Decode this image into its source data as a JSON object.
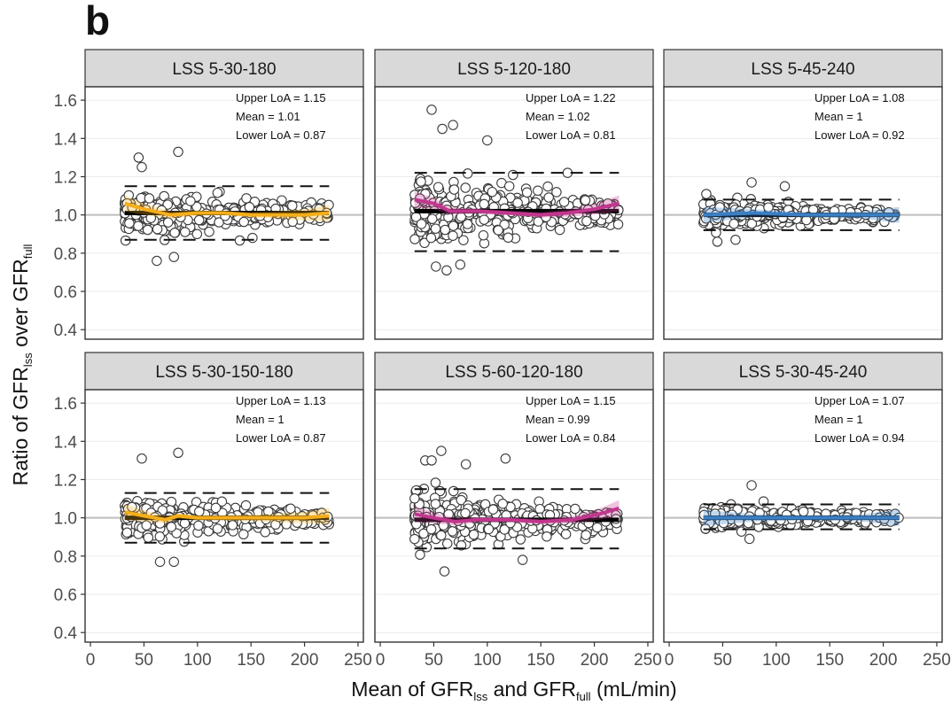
{
  "figure": {
    "panel_label": "b",
    "xlabel_parts": [
      "Mean of GFR",
      "lss",
      " and GFR",
      "full",
      " (mL/min)"
    ],
    "ylabel_parts": [
      "Ratio of GFR",
      "lss",
      " over GFR",
      "full"
    ]
  },
  "chart_data": [
    {
      "type": "scatter",
      "title": "LSS 5-30-180",
      "xlim": [
        -5,
        255
      ],
      "ylim": [
        0.35,
        1.67
      ],
      "xticks": [
        0,
        50,
        100,
        150,
        200,
        250
      ],
      "yticks": [
        0.4,
        0.6,
        0.8,
        1.0,
        1.2,
        1.4,
        1.6
      ],
      "smooth_color": "#F5AE1B",
      "annotations": {
        "upper_loa": "Upper LoA =  1.15",
        "mean": "Mean =  1.01",
        "lower_loa": "Lower LoA =  0.87"
      },
      "upper_loa": 1.15,
      "mean": 1.01,
      "lower_loa": 0.87,
      "x_range": [
        32,
        223
      ],
      "spread": 0.065,
      "n_points": 420,
      "outliers": [
        [
          45,
          1.3
        ],
        [
          82,
          1.33
        ],
        [
          62,
          0.76
        ],
        [
          78,
          0.78
        ],
        [
          48,
          1.25
        ]
      ],
      "smooth": [
        [
          32,
          1.06
        ],
        [
          50,
          1.03
        ],
        [
          75,
          1.0
        ],
        [
          100,
          1.01
        ],
        [
          125,
          1.01
        ],
        [
          150,
          1.0
        ],
        [
          175,
          1.0
        ],
        [
          200,
          1.0
        ],
        [
          223,
          1.01
        ]
      ]
    },
    {
      "type": "scatter",
      "title": "LSS 5-120-180",
      "xlim": [
        -5,
        255
      ],
      "ylim": [
        0.35,
        1.67
      ],
      "xticks": [
        0,
        50,
        100,
        150,
        200,
        250
      ],
      "yticks": [
        0.4,
        0.6,
        0.8,
        1.0,
        1.2,
        1.4,
        1.6
      ],
      "smooth_color": "#C2378E",
      "annotations": {
        "upper_loa": "Upper LoA =  1.22",
        "mean": "Mean =  1.02",
        "lower_loa": "Lower LoA =  0.81"
      },
      "upper_loa": 1.22,
      "mean": 1.02,
      "lower_loa": 0.81,
      "x_range": [
        32,
        223
      ],
      "spread": 0.105,
      "n_points": 420,
      "outliers": [
        [
          48,
          1.55
        ],
        [
          68,
          1.47
        ],
        [
          58,
          1.45
        ],
        [
          175,
          1.22
        ],
        [
          52,
          0.73
        ],
        [
          62,
          0.71
        ],
        [
          100,
          1.39
        ]
      ],
      "smooth": [
        [
          32,
          1.08
        ],
        [
          50,
          1.06
        ],
        [
          65,
          1.02
        ],
        [
          90,
          1.02
        ],
        [
          120,
          1.01
        ],
        [
          150,
          1.0
        ],
        [
          175,
          1.01
        ],
        [
          200,
          1.03
        ],
        [
          223,
          1.06
        ]
      ]
    },
    {
      "type": "scatter",
      "title": "LSS 5-45-240",
      "xlim": [
        -5,
        255
      ],
      "ylim": [
        0.35,
        1.67
      ],
      "xticks": [
        0,
        50,
        100,
        150,
        200,
        250
      ],
      "yticks": [
        0.4,
        0.6,
        0.8,
        1.0,
        1.2,
        1.4,
        1.6
      ],
      "smooth_color": "#3B7FC4",
      "annotations": {
        "upper_loa": "Upper LoA =  1.08",
        "mean": "Mean =  1",
        "lower_loa": "Lower LoA =  0.92"
      },
      "upper_loa": 1.08,
      "mean": 1.0,
      "lower_loa": 0.92,
      "x_range": [
        32,
        215
      ],
      "spread": 0.04,
      "n_points": 380,
      "outliers": [
        [
          77,
          1.17
        ],
        [
          108,
          1.15
        ],
        [
          45,
          0.86
        ],
        [
          62,
          0.87
        ]
      ],
      "smooth": [
        [
          32,
          1.0
        ],
        [
          80,
          1.01
        ],
        [
          130,
          1.0
        ],
        [
          180,
          1.0
        ],
        [
          215,
          1.0
        ]
      ]
    },
    {
      "type": "scatter",
      "title": "LSS 5-30-150-180",
      "xlim": [
        -5,
        255
      ],
      "ylim": [
        0.35,
        1.67
      ],
      "xticks": [
        0,
        50,
        100,
        150,
        200,
        250
      ],
      "yticks": [
        0.4,
        0.6,
        0.8,
        1.0,
        1.2,
        1.4,
        1.6
      ],
      "smooth_color": "#F5AE1B",
      "annotations": {
        "upper_loa": "Upper LoA =  1.13",
        "mean": "Mean =  1",
        "lower_loa": "Lower LoA =  0.87"
      },
      "upper_loa": 1.13,
      "mean": 1.0,
      "lower_loa": 0.87,
      "x_range": [
        32,
        223
      ],
      "spread": 0.06,
      "n_points": 420,
      "outliers": [
        [
          48,
          1.31
        ],
        [
          82,
          1.34
        ],
        [
          65,
          0.77
        ],
        [
          78,
          0.77
        ]
      ],
      "smooth": [
        [
          32,
          1.03
        ],
        [
          50,
          1.01
        ],
        [
          70,
          0.99
        ],
        [
          82,
          1.01
        ],
        [
          100,
          1.0
        ],
        [
          130,
          1.0
        ],
        [
          160,
          1.0
        ],
        [
          200,
          1.0
        ],
        [
          223,
          1.01
        ]
      ]
    },
    {
      "type": "scatter",
      "title": "LSS 5-60-120-180",
      "xlim": [
        -5,
        255
      ],
      "ylim": [
        0.35,
        1.67
      ],
      "xticks": [
        0,
        50,
        100,
        150,
        200,
        250
      ],
      "yticks": [
        0.4,
        0.6,
        0.8,
        1.0,
        1.2,
        1.4,
        1.6
      ],
      "smooth_color": "#C2378E",
      "annotations": {
        "upper_loa": "Upper LoA =  1.15",
        "mean": "Mean =  0.99",
        "lower_loa": "Lower LoA =  0.84"
      },
      "upper_loa": 1.15,
      "mean": 0.99,
      "lower_loa": 0.84,
      "x_range": [
        32,
        223
      ],
      "spread": 0.08,
      "n_points": 420,
      "outliers": [
        [
          42,
          1.3
        ],
        [
          48,
          1.3
        ],
        [
          57,
          1.35
        ],
        [
          80,
          1.28
        ],
        [
          117,
          1.31
        ],
        [
          60,
          0.72
        ],
        [
          133,
          0.78
        ]
      ],
      "smooth": [
        [
          32,
          1.02
        ],
        [
          50,
          1.0
        ],
        [
          70,
          0.98
        ],
        [
          90,
          0.99
        ],
        [
          120,
          0.99
        ],
        [
          150,
          0.98
        ],
        [
          180,
          0.99
        ],
        [
          205,
          1.02
        ],
        [
          223,
          1.05
        ]
      ]
    },
    {
      "type": "scatter",
      "title": "LSS 5-30-45-240",
      "xlim": [
        -5,
        255
      ],
      "ylim": [
        0.35,
        1.67
      ],
      "xticks": [
        0,
        50,
        100,
        150,
        200,
        250
      ],
      "yticks": [
        0.4,
        0.6,
        0.8,
        1.0,
        1.2,
        1.4,
        1.6
      ],
      "smooth_color": "#3B7FC4",
      "annotations": {
        "upper_loa": "Upper LoA =  1.07",
        "mean": "Mean =  1",
        "lower_loa": "Lower LoA =  0.94"
      },
      "upper_loa": 1.07,
      "mean": 1.0,
      "lower_loa": 0.94,
      "x_range": [
        32,
        215
      ],
      "spread": 0.035,
      "n_points": 360,
      "outliers": [
        [
          77,
          1.17
        ],
        [
          75,
          0.89
        ]
      ],
      "smooth": [
        [
          32,
          1.0
        ],
        [
          80,
          1.0
        ],
        [
          130,
          1.0
        ],
        [
          180,
          1.0
        ],
        [
          215,
          1.0
        ]
      ]
    }
  ]
}
